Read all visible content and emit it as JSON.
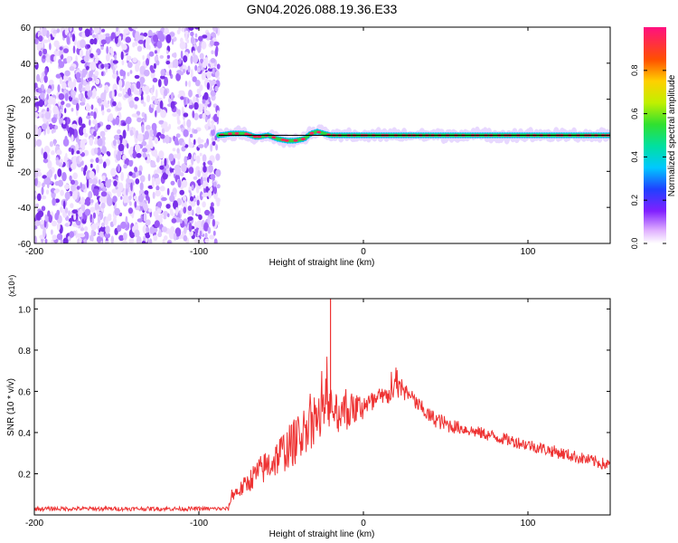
{
  "chart_data": [
    {
      "type": "heatmap",
      "title": "GN04.2026.088.19.36.E33",
      "xlabel": "Height of straight line (km)",
      "ylabel": "Frequency (Hz)",
      "xlim": [
        -200,
        150
      ],
      "ylim": [
        -60,
        60
      ],
      "x_ticks": [
        -200,
        -100,
        0,
        100
      ],
      "y_ticks": [
        -60,
        -40,
        -20,
        0,
        20,
        40,
        60
      ],
      "noise_region": {
        "x_range": [
          -200,
          -88
        ],
        "y_range": [
          -60,
          60
        ]
      },
      "signal_track": {
        "x": [
          -88,
          -80,
          -72,
          -65,
          -58,
          -52,
          -46,
          -42,
          -36,
          -32,
          -28,
          -24,
          -20,
          -12,
          -5,
          0,
          20,
          40,
          60,
          80,
          100,
          120,
          140,
          150
        ],
        "y": [
          0,
          1,
          1,
          -1,
          0,
          -2,
          -3,
          -3,
          -2,
          1,
          2,
          1,
          0,
          0,
          0,
          0,
          0,
          0,
          0,
          0,
          0,
          0,
          0,
          0
        ]
      },
      "reference_line_y": 0,
      "colorbar": {
        "label": "Normalized spectral amplitude",
        "range": [
          0.0,
          1.0
        ],
        "ticks": [
          0.0,
          0.2,
          0.4,
          0.6,
          0.8
        ],
        "tick_labels": [
          "0.0",
          "0.2",
          "0.4",
          "0.6",
          "0.8"
        ]
      },
      "colors": {
        "noise": "#7a30e8",
        "track_low": "#00c0ff",
        "track_mid": "#30d040",
        "track_high": "#ff2060"
      }
    },
    {
      "type": "line",
      "xlabel": "Height of straight line (km)",
      "ylabel": "SNR (10 * v/v)",
      "y_multiplier": "(x10⁴)",
      "xlim": [
        -200,
        150
      ],
      "ylim": [
        0,
        1.05
      ],
      "x_ticks": [
        -200,
        -100,
        0,
        100
      ],
      "y_ticks": [
        0.2,
        0.4,
        0.6,
        0.8,
        1.0
      ],
      "series": [
        {
          "name": "SNR",
          "color": "#ee3333",
          "x": [
            -200,
            -150,
            -100,
            -82,
            -80,
            -75,
            -70,
            -65,
            -60,
            -55,
            -50,
            -45,
            -40,
            -35,
            -30,
            -25,
            -22,
            -20,
            -18,
            -15,
            -10,
            -5,
            0,
            5,
            10,
            15,
            20,
            25,
            30,
            35,
            40,
            50,
            60,
            70,
            80,
            90,
            100,
            110,
            120,
            130,
            140,
            150
          ],
          "values": [
            0.03,
            0.03,
            0.03,
            0.03,
            0.1,
            0.12,
            0.16,
            0.2,
            0.23,
            0.26,
            0.3,
            0.33,
            0.37,
            0.42,
            0.45,
            0.48,
            0.52,
            0.55,
            0.5,
            0.5,
            0.5,
            0.52,
            0.52,
            0.54,
            0.56,
            0.58,
            0.62,
            0.6,
            0.56,
            0.52,
            0.48,
            0.44,
            0.42,
            0.4,
            0.38,
            0.36,
            0.34,
            0.32,
            0.3,
            0.28,
            0.26,
            0.24
          ],
          "noise_amplitude": [
            0.01,
            0.01,
            0.01,
            0.01,
            0.03,
            0.04,
            0.05,
            0.07,
            0.08,
            0.09,
            0.1,
            0.11,
            0.12,
            0.12,
            0.12,
            0.12,
            0.12,
            0.12,
            0.11,
            0.1,
            0.09,
            0.08,
            0.07,
            0.06,
            0.06,
            0.05,
            0.05,
            0.05,
            0.04,
            0.04,
            0.04,
            0.04,
            0.03,
            0.03,
            0.03,
            0.03,
            0.03,
            0.03,
            0.03,
            0.03,
            0.03,
            0.03
          ]
        }
      ],
      "spike": {
        "x": -20,
        "value": 1.05
      }
    }
  ]
}
